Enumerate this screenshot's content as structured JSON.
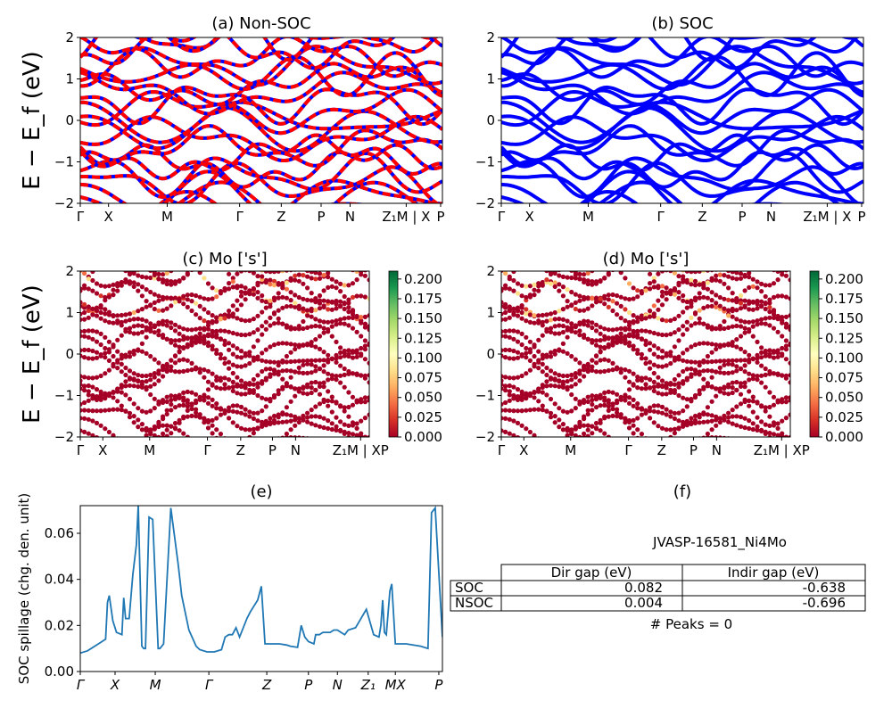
{
  "figure": {
    "y_label_energy": "E − E_f (eV)",
    "y_label_spillage": "SOC spillage (chg. den. unit)"
  },
  "colors": {
    "soc_line": "#0000ff",
    "nonsoc_dash": "#ff0000",
    "spillage_line": "#1f77b4",
    "cmap_low": "#a50026",
    "cmap_high": "#006837"
  },
  "chart_data": [
    {
      "id": "a",
      "type": "line",
      "title": "(a) Non-SOC",
      "ylabel": "E − E_f (eV)",
      "ylim": [
        -2,
        2
      ],
      "yticks": [
        "2",
        "1",
        "0",
        "−1",
        "−2"
      ],
      "xticks": [
        "Γ",
        "X",
        "M",
        "Γ",
        "Z",
        "P",
        "N",
        "Z₁M | X",
        "P"
      ],
      "series": []
    },
    {
      "id": "b",
      "type": "line",
      "title": "(b) SOC",
      "ylim": [
        -2,
        2
      ],
      "yticks": [
        "2",
        "1",
        "0",
        "−1",
        "−2"
      ],
      "xticks": [
        "Γ",
        "X",
        "M",
        "Γ",
        "Z",
        "P",
        "N",
        "Z₁M | X",
        "P"
      ],
      "series": []
    },
    {
      "id": "c",
      "type": "scatter",
      "title": "(c)  Mo ['s']",
      "ylabel": "E − E_f (eV)",
      "ylim": [
        -2,
        2
      ],
      "yticks": [
        "2",
        "1",
        "0",
        "−1",
        "−2"
      ],
      "xticks": [
        "Γ",
        "X",
        "M",
        "Γ",
        "Z",
        "P",
        "N",
        "Z₁M | XP"
      ],
      "colorbar_ticks": [
        "0.200",
        "0.175",
        "0.150",
        "0.125",
        "0.100",
        "0.075",
        "0.050",
        "0.025",
        "0.000"
      ]
    },
    {
      "id": "d",
      "type": "scatter",
      "title": "(d) Mo ['s']",
      "ylim": [
        -2,
        2
      ],
      "yticks": [
        "2",
        "1",
        "0",
        "−1",
        "−2"
      ],
      "xticks": [
        "Γ",
        "X",
        "M",
        "Γ",
        "Z",
        "P",
        "N",
        "Z₁M | XP"
      ],
      "colorbar_ticks": [
        "0.200",
        "0.175",
        "0.150",
        "0.125",
        "0.100",
        "0.075",
        "0.050",
        "0.025",
        "0.000"
      ]
    },
    {
      "id": "e",
      "type": "line",
      "title": "(e)",
      "ylabel": "SOC spillage (chg. den. unit)",
      "ylim": [
        0,
        0.072
      ],
      "yticks": [
        "0.06",
        "0.04",
        "0.02",
        "0.00"
      ],
      "xticks": [
        "Γ",
        "X",
        "M",
        "Γ",
        "Z",
        "P",
        "N",
        "Z₁",
        "MX",
        "P"
      ],
      "series": [
        {
          "x": [
            0,
            0.02,
            0.05,
            0.07,
            0.075,
            0.08,
            0.09,
            0.1,
            0.115,
            0.12,
            0.125,
            0.135,
            0.145,
            0.155,
            0.16,
            0.17,
            0.175,
            0.18,
            0.19,
            0.2,
            0.215,
            0.22,
            0.225,
            0.23,
            0.25,
            0.27,
            0.275,
            0.28,
            0.3,
            0.32,
            0.33,
            0.35,
            0.37,
            0.39,
            0.4,
            0.41,
            0.42,
            0.43,
            0.44,
            0.46,
            0.47,
            0.49,
            0.5,
            0.51,
            0.53,
            0.55,
            0.57,
            0.58,
            0.6,
            0.61,
            0.62,
            0.63,
            0.645,
            0.65,
            0.66,
            0.67,
            0.68,
            0.69,
            0.7,
            0.705,
            0.71,
            0.72,
            0.73,
            0.74,
            0.76,
            0.79,
            0.81,
            0.825,
            0.83,
            0.835,
            0.84,
            0.845,
            0.855,
            0.86,
            0.87,
            0.875,
            0.88,
            0.9,
            0.94,
            0.96,
            0.97,
            0.98,
            1.0
          ],
          "y": [
            0.008,
            0.009,
            0.012,
            0.014,
            0.03,
            0.033,
            0.022,
            0.017,
            0.016,
            0.032,
            0.023,
            0.023,
            0.042,
            0.055,
            0.072,
            0.011,
            0.01,
            0.01,
            0.067,
            0.066,
            0.01,
            0.01,
            0.011,
            0.012,
            0.071,
            0.047,
            0.04,
            0.033,
            0.018,
            0.011,
            0.0095,
            0.0085,
            0.0085,
            0.0095,
            0.015,
            0.016,
            0.016,
            0.019,
            0.015,
            0.023,
            0.026,
            0.031,
            0.037,
            0.012,
            0.012,
            0.012,
            0.0115,
            0.011,
            0.0105,
            0.02,
            0.015,
            0.013,
            0.012,
            0.016,
            0.016,
            0.017,
            0.017,
            0.017,
            0.018,
            0.018,
            0.018,
            0.017,
            0.016,
            0.018,
            0.019,
            0.027,
            0.016,
            0.015,
            0.02,
            0.031,
            0.017,
            0.016,
            0.035,
            0.038,
            0.012,
            0.012,
            0.012,
            0.012,
            0.011,
            0.01,
            0.069,
            0.071,
            0.015
          ]
        }
      ]
    }
  ],
  "panel_f": {
    "title": "(f)",
    "material": "JVASP-16581_Ni4Mo",
    "headers": [
      "Dir gap (eV)",
      "Indir gap (eV)"
    ],
    "rows": [
      {
        "label": "SOC",
        "dir": "0.082",
        "indir": "-0.638"
      },
      {
        "label": "NSOC",
        "dir": "0.004",
        "indir": "-0.696"
      }
    ],
    "peaks": "# Peaks = 0"
  }
}
